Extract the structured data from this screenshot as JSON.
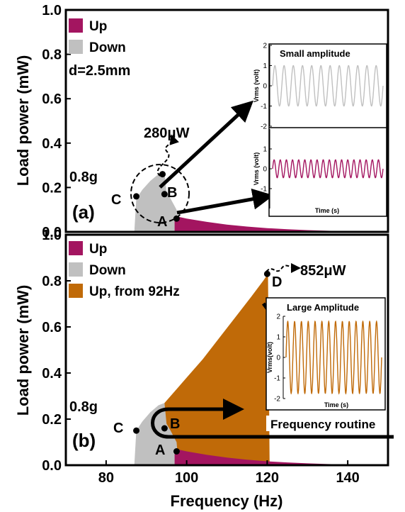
{
  "colors": {
    "up": "#a31560",
    "down": "#c0c0c0",
    "up92": "#c06a08",
    "black": "#000000"
  },
  "chart_data": [
    {
      "panel_label": "(a)",
      "type": "area",
      "xlabel": "Frequency (Hz)",
      "ylabel": "Load power (mW)",
      "xlim": [
        70,
        150
      ],
      "ylim": [
        0.0,
        1.0
      ],
      "yticks": [
        "0.0",
        "0.2",
        "0.4",
        "0.6",
        "0.8",
        "1.0"
      ],
      "legend_position": "top-left",
      "legend": [
        "Up",
        "Down"
      ],
      "annotations": {
        "distance": "d=2.5mm",
        "acceleration": "0.8g",
        "peak_power": "280μW",
        "point_labels": [
          "A",
          "B",
          "C"
        ]
      },
      "series": [
        {
          "name": "Up",
          "x": [
            97,
            97.5,
            100,
            105,
            110,
            115,
            120,
            125,
            130,
            135,
            140,
            145,
            150
          ],
          "y": [
            0.06,
            0.07,
            0.06,
            0.045,
            0.033,
            0.024,
            0.017,
            0.012,
            0.008,
            0.005,
            0.003,
            0.002,
            0.001
          ]
        },
        {
          "name": "Down",
          "x": [
            87,
            87.5,
            89,
            91,
            93,
            94.5,
            95,
            96,
            97.5,
            98
          ],
          "y": [
            0.0,
            0.15,
            0.19,
            0.23,
            0.26,
            0.27,
            0.18,
            0.15,
            0.1,
            0.0
          ]
        }
      ],
      "points": [
        {
          "label": "A",
          "x": 97.5,
          "y": 0.06
        },
        {
          "label": "B",
          "x": 94.5,
          "y": 0.17
        },
        {
          "label": "C",
          "x": 87.5,
          "y": 0.16
        },
        {
          "label": "",
          "x": 94,
          "y": 0.26
        }
      ],
      "insets": [
        {
          "title": "Small amplitude",
          "ylabel": "Vrms (volt)",
          "xlabel": "",
          "yticks": [
            "2",
            "1",
            "0",
            "-1",
            "-2"
          ],
          "ylim": [
            -2,
            2
          ],
          "waveform": {
            "color_key": "down",
            "amplitude": 1.0,
            "cycles": 12
          }
        },
        {
          "title": "",
          "ylabel": "Vrms (volt)",
          "xlabel": "Time (s)",
          "yticks": [
            "1",
            "0",
            "-1"
          ],
          "ylim": [
            -2,
            2
          ],
          "waveform": {
            "color_key": "up",
            "amplitude": 0.45,
            "cycles": 18
          }
        }
      ]
    },
    {
      "panel_label": "(b)",
      "type": "area",
      "xlabel": "Frequency (Hz)",
      "ylabel": "Load power (mW)",
      "xlim": [
        70,
        150
      ],
      "ylim": [
        0.0,
        1.0
      ],
      "xticks": [
        "80",
        "100",
        "120",
        "140"
      ],
      "yticks": [
        "0.0",
        "0.2",
        "0.4",
        "0.6",
        "0.8",
        "1.0"
      ],
      "legend_position": "top-left",
      "legend": [
        "Up",
        "Down",
        "Up, from 92Hz"
      ],
      "annotations": {
        "acceleration": "0.8g",
        "peak_power": "852μW",
        "routine": "Frequency routine",
        "point_labels": [
          "A",
          "B",
          "C",
          "D"
        ]
      },
      "series": [
        {
          "name": "Up",
          "x": [
            97,
            97.5,
            100,
            105,
            110,
            115,
            120,
            125,
            130,
            135,
            140,
            145,
            150
          ],
          "y": [
            0.06,
            0.07,
            0.06,
            0.045,
            0.033,
            0.024,
            0.017,
            0.012,
            0.008,
            0.005,
            0.003,
            0.002,
            0.001
          ]
        },
        {
          "name": "Down",
          "x": [
            87,
            87.5,
            89,
            91,
            93,
            94.5,
            95,
            96,
            97.5,
            98
          ],
          "y": [
            0.0,
            0.15,
            0.19,
            0.23,
            0.26,
            0.27,
            0.18,
            0.15,
            0.1,
            0.0
          ]
        },
        {
          "name": "Up, from 92Hz",
          "x": [
            92,
            94,
            96,
            98,
            100,
            104,
            108,
            112,
            116,
            119,
            120.2,
            120.6
          ],
          "y": [
            0.0,
            0.26,
            0.3,
            0.34,
            0.38,
            0.46,
            0.55,
            0.64,
            0.73,
            0.8,
            0.83,
            0.0
          ]
        }
      ],
      "points": [
        {
          "label": "A",
          "x": 97.5,
          "y": 0.06
        },
        {
          "label": "B",
          "x": 94.5,
          "y": 0.16
        },
        {
          "label": "C",
          "x": 87.5,
          "y": 0.15
        },
        {
          "label": "D",
          "x": 120,
          "y": 0.83
        }
      ],
      "insets": [
        {
          "title": "Large Amplitude",
          "ylabel": "Vrms(volt)",
          "xlabel": "Time (s)",
          "yticks": [
            "2",
            "1",
            "0",
            "-1",
            "-2"
          ],
          "ylim": [
            -2,
            2
          ],
          "waveform": {
            "color_key": "up92",
            "amplitude": 1.75,
            "cycles": 14
          }
        }
      ]
    }
  ]
}
